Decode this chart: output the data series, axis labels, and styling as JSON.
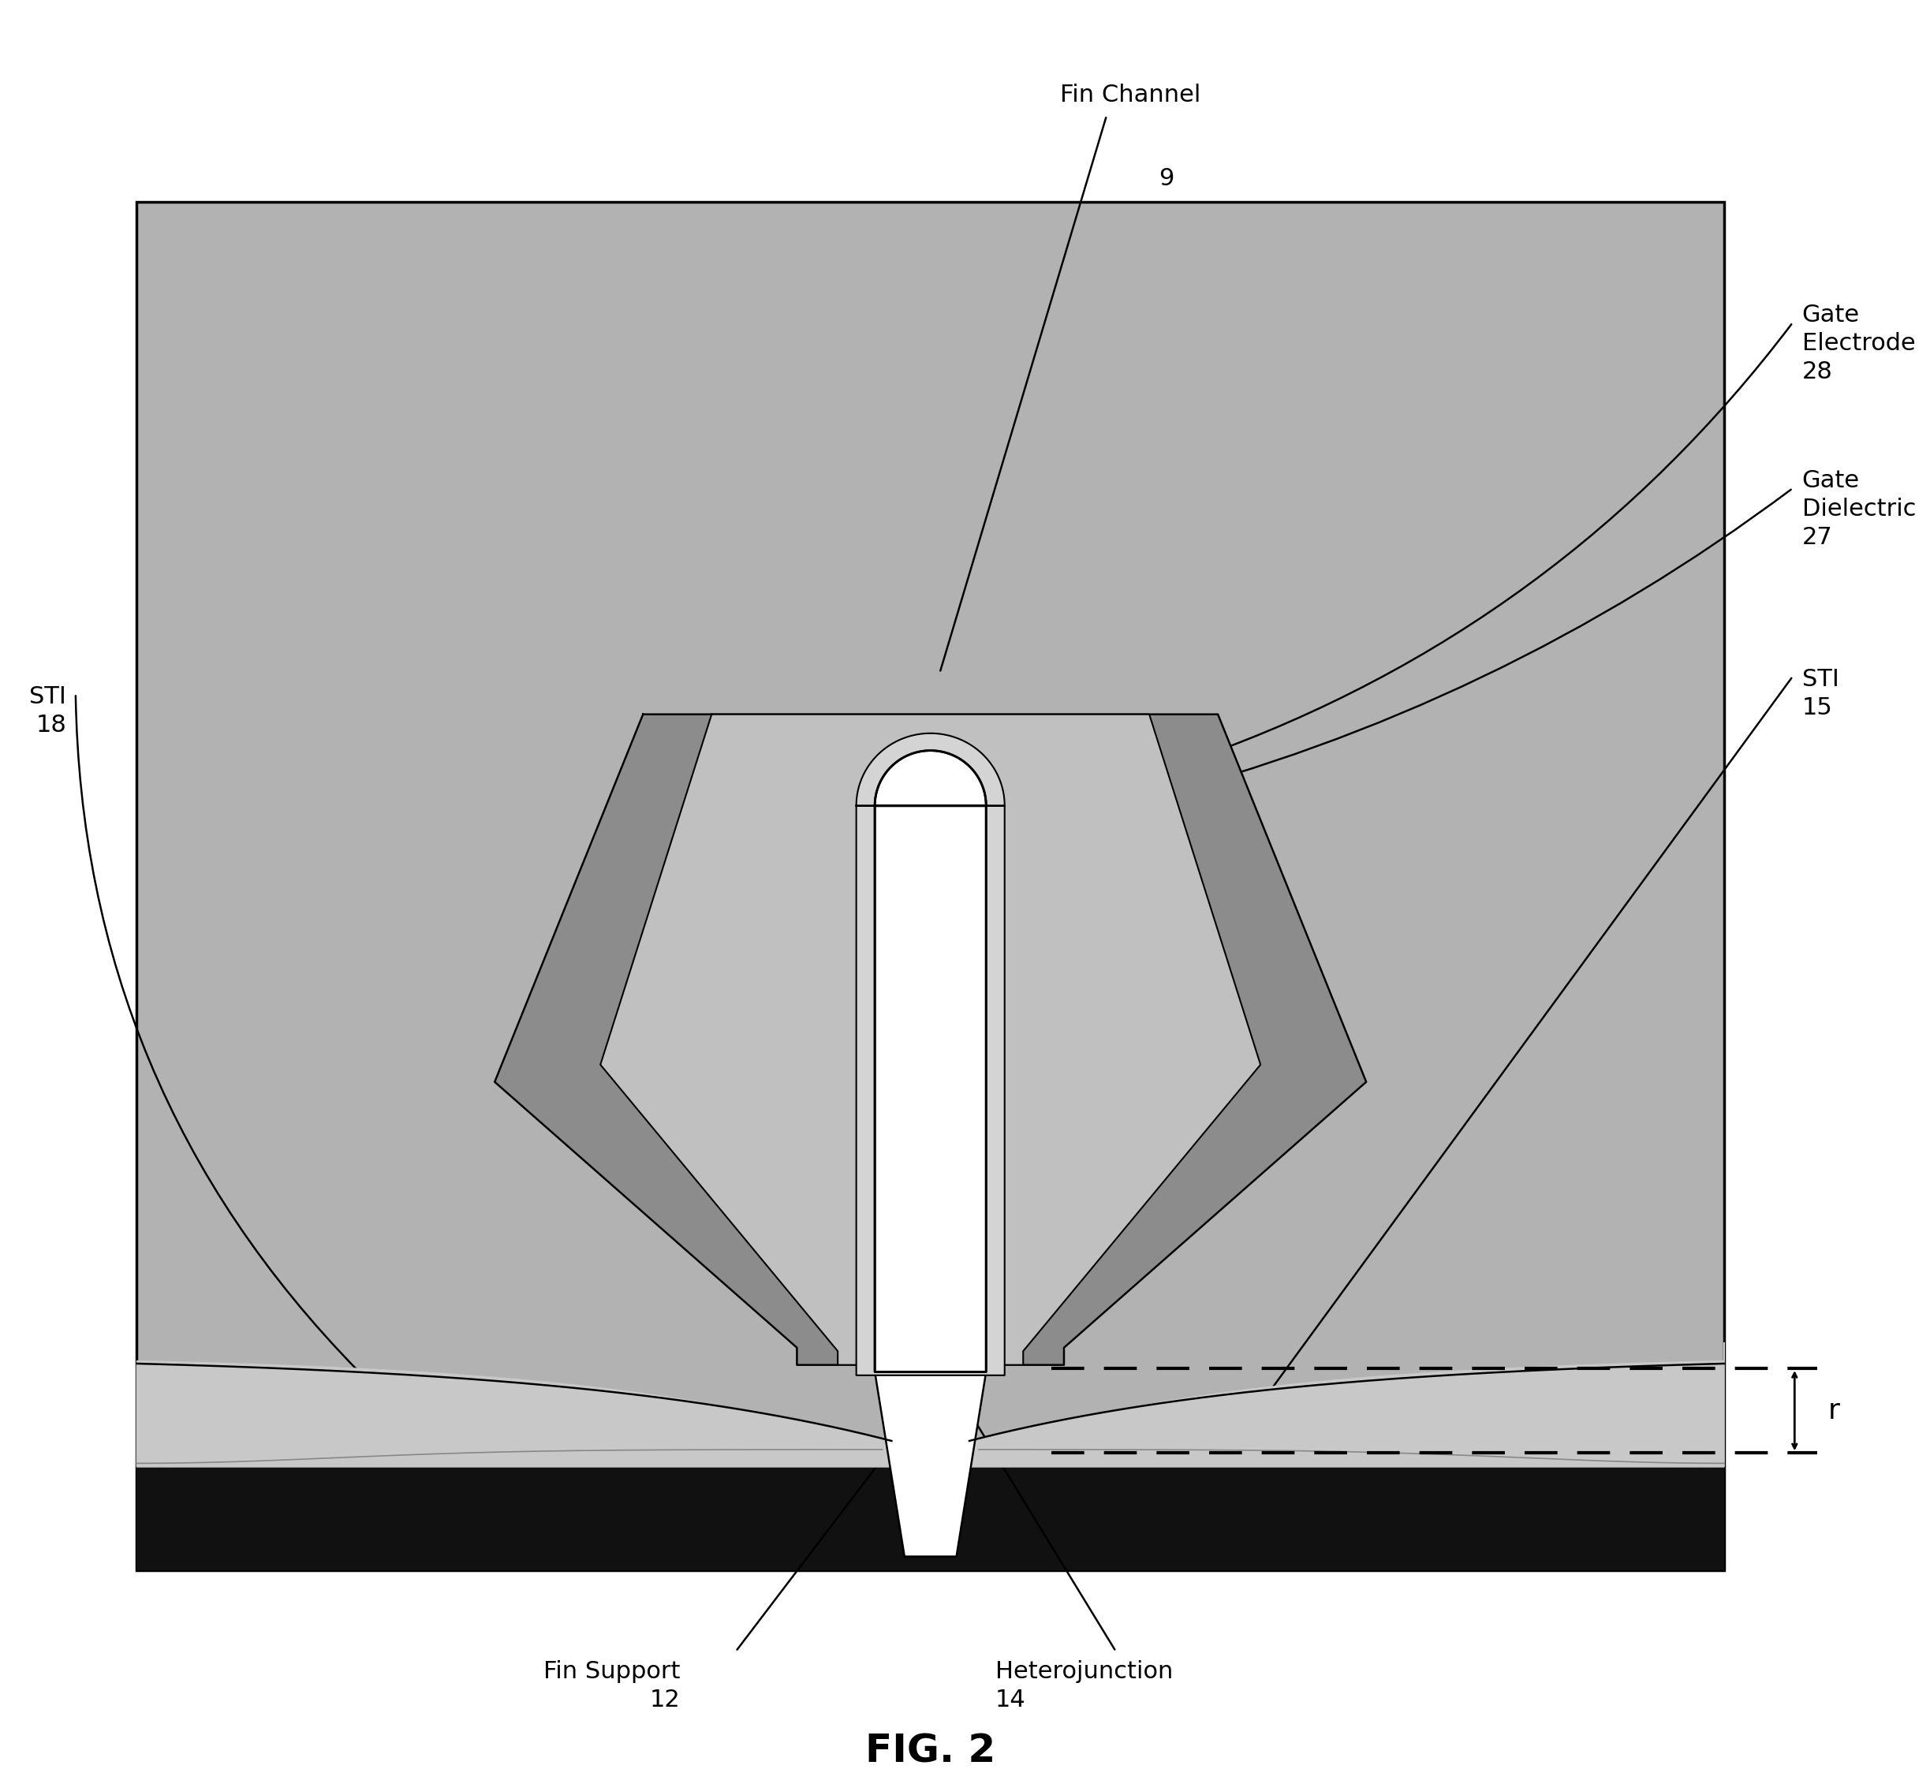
{
  "title": "FIG. 2",
  "title_fontsize": 36,
  "bg_color": "#b0b0b0",
  "outer_bg": "#ffffff",
  "fig_width": 24.47,
  "fig_height": 22.43,
  "labels": {
    "fin_channel": "Fin Channel",
    "fin_channel_num": "9",
    "gate_electrode": "Gate\nElectrode\n28",
    "gate_dielectric": "Gate\nDielectric\n27",
    "sti_left": "STI\n18",
    "sti_right": "STI\n15",
    "fin_support": "Fin Support\n12",
    "heterojunction": "Heterojunction\n14",
    "r_label": "r"
  },
  "colors": {
    "main_bg": "#b2b2b2",
    "gate_electrode_color": "#8c8c8c",
    "gate_dielectric_color": "#c0c0c0",
    "fin_white": "#ffffff",
    "fin_outline": "#000000",
    "bottom_black": "#111111",
    "thin_layer_color": "#d0d0d0",
    "sti_surface_color": "#c8c8c8"
  }
}
